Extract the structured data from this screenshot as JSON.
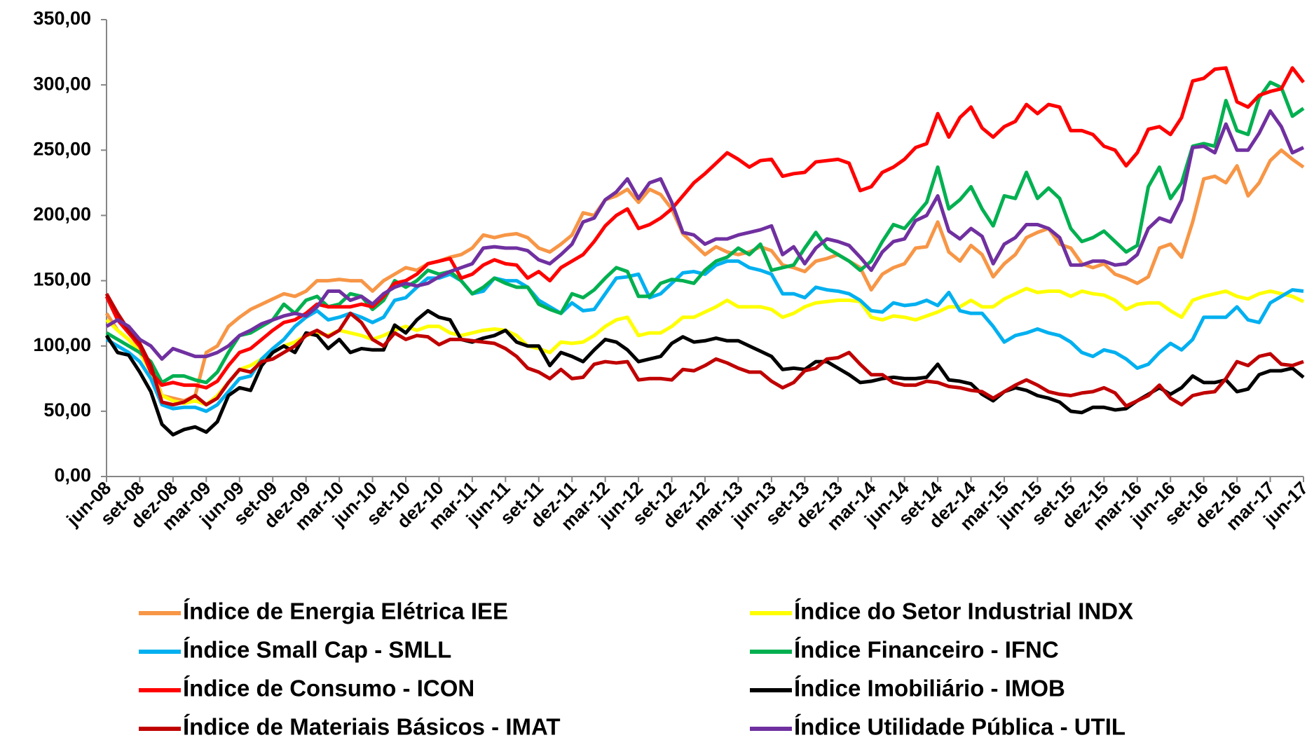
{
  "chart_data": {
    "type": "line",
    "categories": [
      "jun-08",
      null,
      null,
      "set-08",
      null,
      null,
      "dez-08",
      null,
      null,
      "mar-09",
      null,
      null,
      "jun-09",
      null,
      null,
      "set-09",
      null,
      null,
      "dez-09",
      null,
      null,
      "mar-10",
      null,
      null,
      "jun-10",
      null,
      null,
      "set-10",
      null,
      null,
      "dez-10",
      null,
      null,
      "mar-11",
      null,
      null,
      "jun-11",
      null,
      null,
      "set-11",
      null,
      null,
      "dez-11",
      null,
      null,
      "mar-12",
      null,
      null,
      "jun-12",
      null,
      null,
      "set-12",
      null,
      null,
      "dez-12",
      null,
      null,
      "mar-13",
      null,
      null,
      "jun-13",
      null,
      null,
      "set-13",
      null,
      null,
      "dez-13",
      null,
      null,
      "mar-14",
      null,
      null,
      "jun-14",
      null,
      null,
      "set-14",
      null,
      null,
      "dez-14",
      null,
      null,
      "mar-15",
      null,
      null,
      "jun-15",
      null,
      null,
      "set-15",
      null,
      null,
      "dez-15",
      null,
      null,
      "mar-16",
      null,
      null,
      "jun-16",
      null,
      null,
      "set-16",
      null,
      null,
      "dez-16",
      null,
      null,
      "mar-17",
      null,
      null,
      "jun-17"
    ],
    "ylim": [
      0,
      350
    ],
    "yticks": [
      {
        "value": 0,
        "label": "0,00"
      },
      {
        "value": 50,
        "label": "50,00"
      },
      {
        "value": 100,
        "label": "100,00"
      },
      {
        "value": 150,
        "label": "150,00"
      },
      {
        "value": 200,
        "label": "200,00"
      },
      {
        "value": 250,
        "label": "250,00"
      },
      {
        "value": 300,
        "label": "300,00"
      },
      {
        "value": 350,
        "label": "350,00"
      }
    ],
    "grid": false,
    "series": [
      {
        "name": "Índice de Energia Elétrica IEE",
        "color": "#f79646",
        "values": [
          125,
          112,
          105,
          97,
          85,
          62,
          60,
          58,
          62,
          95,
          100,
          115,
          122,
          128,
          132,
          136,
          140,
          138,
          142,
          150,
          150,
          151,
          150,
          150,
          142,
          150,
          155,
          160,
          158,
          163,
          165,
          168,
          170,
          175,
          185,
          183,
          185,
          186,
          183,
          175,
          172,
          178,
          185,
          202,
          200,
          212,
          215,
          220,
          210,
          220,
          216,
          205,
          186,
          178,
          170,
          176,
          172,
          170,
          172,
          176,
          173,
          162,
          160,
          157,
          165,
          167,
          170,
          165,
          160,
          143,
          155,
          160,
          163,
          175,
          176,
          195,
          172,
          165,
          177,
          170,
          153,
          163,
          170,
          183,
          187,
          190,
          178,
          175,
          163,
          160,
          163,
          155,
          152,
          148,
          153,
          175,
          178,
          168,
          195,
          228,
          230,
          225,
          238,
          215,
          225,
          242,
          250,
          243,
          237
        ]
      },
      {
        "name": "Índice do Setor Industrial INDX",
        "color": "#ffff00",
        "values": [
          120,
          112,
          105,
          95,
          80,
          62,
          58,
          56,
          58,
          55,
          62,
          72,
          82,
          85,
          90,
          95,
          100,
          103,
          108,
          110,
          108,
          112,
          110,
          108,
          105,
          108,
          112,
          115,
          112,
          115,
          115,
          110,
          108,
          110,
          112,
          113,
          112,
          108,
          100,
          98,
          95,
          103,
          102,
          103,
          108,
          115,
          120,
          122,
          108,
          110,
          110,
          115,
          122,
          122,
          126,
          130,
          135,
          130,
          130,
          130,
          128,
          122,
          125,
          130,
          133,
          134,
          135,
          135,
          134,
          122,
          120,
          123,
          122,
          120,
          123,
          126,
          130,
          130,
          135,
          130,
          130,
          136,
          140,
          144,
          141,
          142,
          142,
          138,
          142,
          140,
          139,
          135,
          128,
          132,
          133,
          133,
          127,
          122,
          135,
          138,
          140,
          142,
          138,
          136,
          140,
          142,
          140,
          138,
          134
        ]
      },
      {
        "name": "Índice Small Cap - SMLL",
        "color": "#00b0f0",
        "values": [
          105,
          100,
          95,
          88,
          75,
          55,
          52,
          53,
          53,
          50,
          55,
          65,
          75,
          77,
          90,
          98,
          105,
          115,
          122,
          127,
          120,
          122,
          125,
          122,
          118,
          122,
          135,
          137,
          145,
          152,
          152,
          155,
          150,
          140,
          142,
          152,
          150,
          150,
          145,
          135,
          130,
          125,
          133,
          127,
          128,
          140,
          152,
          153,
          155,
          137,
          140,
          148,
          156,
          157,
          155,
          162,
          165,
          165,
          160,
          158,
          155,
          140,
          140,
          137,
          145,
          143,
          142,
          140,
          135,
          127,
          126,
          133,
          131,
          132,
          135,
          131,
          141,
          127,
          125,
          125,
          115,
          103,
          108,
          110,
          113,
          110,
          108,
          103,
          95,
          92,
          97,
          95,
          90,
          83,
          86,
          95,
          102,
          97,
          105,
          122,
          122,
          122,
          130,
          120,
          118,
          133,
          138,
          143,
          142
        ]
      },
      {
        "name": "Índice Financeiro - IFNC",
        "color": "#00b050",
        "values": [
          110,
          105,
          100,
          95,
          88,
          72,
          77,
          77,
          74,
          72,
          80,
          95,
          108,
          110,
          115,
          120,
          132,
          125,
          135,
          138,
          130,
          132,
          140,
          138,
          128,
          135,
          150,
          145,
          150,
          158,
          155,
          157,
          150,
          140,
          145,
          152,
          148,
          145,
          145,
          132,
          128,
          125,
          140,
          137,
          143,
          152,
          160,
          157,
          138,
          138,
          148,
          151,
          150,
          148,
          158,
          165,
          168,
          175,
          170,
          178,
          158,
          160,
          162,
          175,
          187,
          175,
          170,
          165,
          158,
          165,
          180,
          193,
          190,
          200,
          210,
          237,
          205,
          212,
          222,
          205,
          192,
          215,
          213,
          233,
          213,
          221,
          213,
          190,
          180,
          183,
          188,
          180,
          172,
          177,
          222,
          237,
          213,
          225,
          253,
          255,
          253,
          288,
          265,
          262,
          290,
          302,
          298,
          276,
          282
        ]
      },
      {
        "name": "Índice de Consumo - ICON",
        "color": "#ff0000",
        "values": [
          138,
          120,
          110,
          100,
          80,
          70,
          72,
          70,
          70,
          68,
          73,
          85,
          95,
          98,
          105,
          112,
          118,
          120,
          125,
          132,
          130,
          130,
          130,
          132,
          130,
          138,
          148,
          150,
          155,
          163,
          165,
          167,
          152,
          155,
          162,
          166,
          163,
          162,
          152,
          157,
          150,
          160,
          165,
          170,
          180,
          192,
          200,
          205,
          190,
          193,
          198,
          205,
          215,
          225,
          232,
          240,
          248,
          243,
          237,
          242,
          243,
          230,
          232,
          233,
          241,
          242,
          243,
          240,
          219,
          222,
          233,
          237,
          243,
          252,
          255,
          278,
          260,
          275,
          283,
          267,
          260,
          268,
          272,
          285,
          278,
          285,
          283,
          265,
          265,
          262,
          253,
          250,
          238,
          248,
          266,
          268,
          262,
          275,
          303,
          305,
          312,
          313,
          287,
          283,
          292,
          295,
          297,
          313,
          302
        ]
      },
      {
        "name": "Índice Imobiliário - IMOB",
        "color": "#000000",
        "values": [
          108,
          95,
          93,
          80,
          65,
          40,
          32,
          36,
          38,
          34,
          42,
          62,
          68,
          66,
          85,
          95,
          100,
          95,
          110,
          108,
          98,
          105,
          95,
          98,
          97,
          97,
          116,
          110,
          120,
          127,
          122,
          120,
          105,
          103,
          106,
          108,
          112,
          103,
          100,
          100,
          85,
          95,
          92,
          88,
          97,
          105,
          103,
          97,
          88,
          90,
          92,
          102,
          107,
          103,
          104,
          106,
          104,
          104,
          100,
          96,
          92,
          82,
          83,
          82,
          88,
          88,
          83,
          78,
          72,
          73,
          75,
          76,
          75,
          75,
          76,
          86,
          74,
          73,
          71,
          63,
          58,
          65,
          68,
          66,
          62,
          60,
          57,
          50,
          49,
          53,
          53,
          51,
          52,
          58,
          63,
          68,
          63,
          68,
          77,
          72,
          72,
          74,
          65,
          67,
          78,
          81,
          81,
          83,
          76
        ]
      },
      {
        "name": "Índice de Materiais Básicos - IMAT",
        "color": "#c00000",
        "values": [
          140,
          125,
          112,
          102,
          85,
          57,
          55,
          57,
          62,
          55,
          60,
          72,
          82,
          80,
          88,
          90,
          95,
          100,
          108,
          112,
          107,
          112,
          125,
          118,
          105,
          100,
          110,
          105,
          108,
          107,
          101,
          105,
          105,
          104,
          103,
          102,
          98,
          92,
          83,
          80,
          75,
          82,
          75,
          76,
          86,
          88,
          87,
          88,
          74,
          75,
          75,
          74,
          82,
          81,
          85,
          90,
          87,
          83,
          80,
          80,
          73,
          68,
          72,
          81,
          83,
          90,
          91,
          95,
          86,
          78,
          78,
          72,
          70,
          70,
          73,
          72,
          69,
          68,
          66,
          65,
          60,
          65,
          70,
          74,
          70,
          65,
          63,
          62,
          64,
          65,
          68,
          64,
          54,
          58,
          62,
          70,
          60,
          55,
          62,
          64,
          65,
          75,
          88,
          85,
          92,
          94,
          86,
          85,
          88
        ]
      },
      {
        "name": "Índice Utilidade Pública - UTIL",
        "color": "#7030a0",
        "values": [
          115,
          120,
          115,
          105,
          100,
          90,
          98,
          95,
          92,
          92,
          95,
          100,
          108,
          112,
          117,
          120,
          123,
          125,
          123,
          130,
          142,
          142,
          135,
          138,
          132,
          140,
          145,
          148,
          146,
          148,
          153,
          157,
          160,
          163,
          175,
          176,
          175,
          175,
          173,
          166,
          163,
          170,
          178,
          195,
          198,
          212,
          218,
          228,
          213,
          225,
          228,
          210,
          187,
          185,
          178,
          182,
          182,
          185,
          187,
          189,
          192,
          170,
          176,
          163,
          175,
          182,
          180,
          177,
          168,
          158,
          172,
          180,
          182,
          196,
          200,
          215,
          188,
          182,
          190,
          184,
          163,
          178,
          183,
          193,
          193,
          190,
          183,
          162,
          162,
          165,
          165,
          162,
          163,
          170,
          190,
          198,
          195,
          212,
          252,
          253,
          248,
          270,
          250,
          250,
          263,
          280,
          268,
          248,
          252
        ]
      }
    ]
  }
}
